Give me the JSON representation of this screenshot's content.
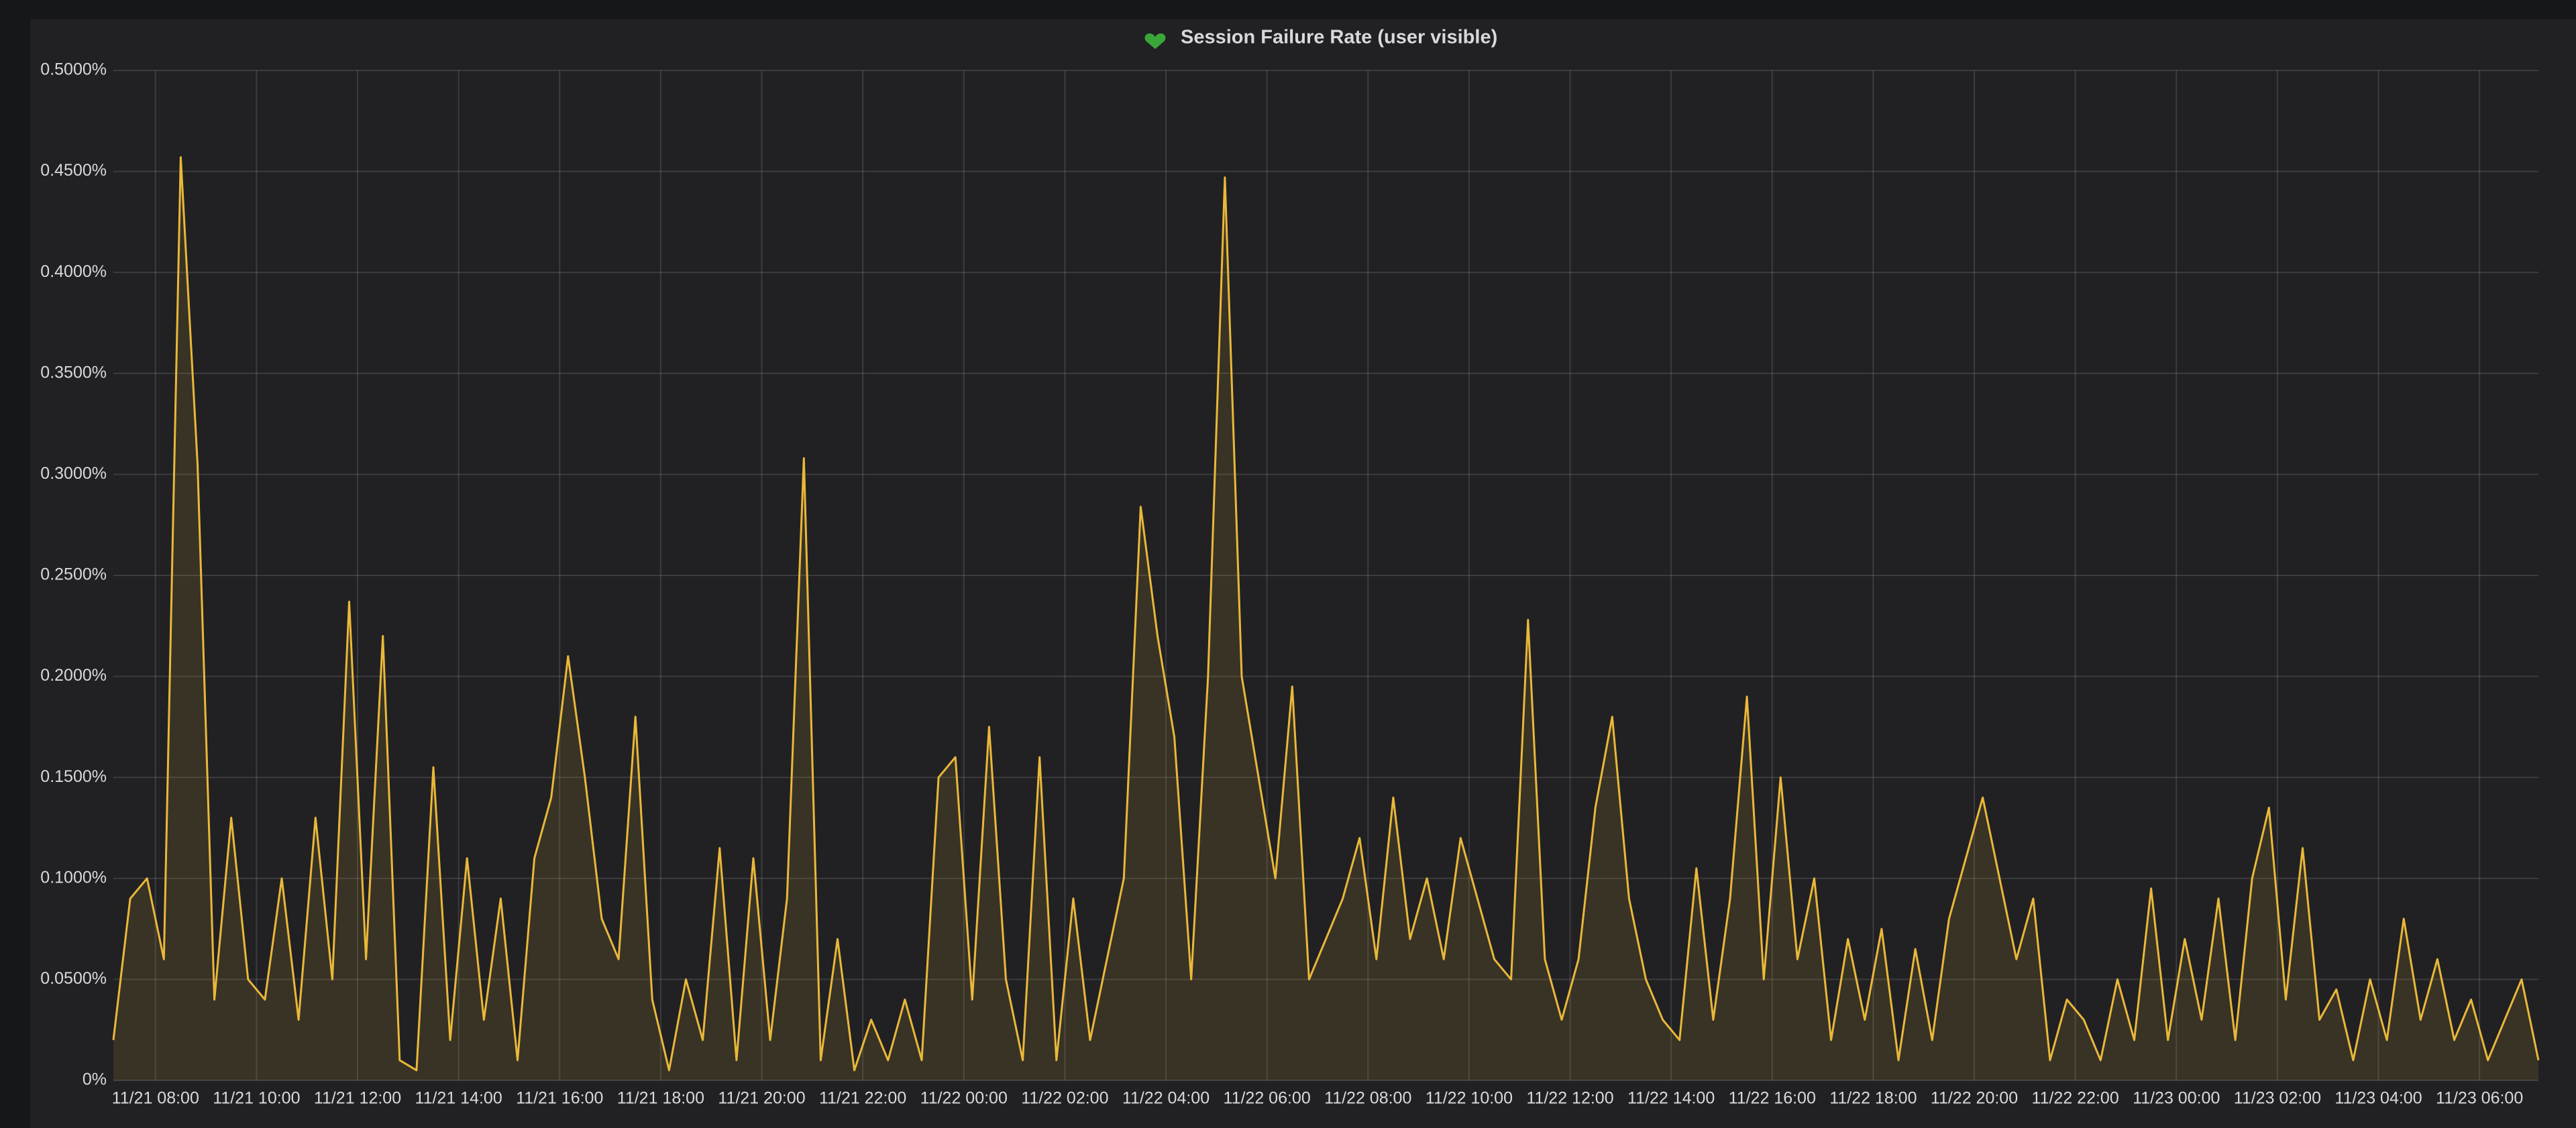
{
  "chart_data": {
    "type": "line",
    "title": "Session Failure Rate (user visible)",
    "x": [
      "11/21 07:10",
      "11/21 07:30",
      "11/21 07:50",
      "11/21 08:10",
      "11/21 08:30",
      "11/21 08:50",
      "11/21 09:10",
      "11/21 09:30",
      "11/21 09:50",
      "11/21 10:10",
      "11/21 10:30",
      "11/21 10:50",
      "11/21 11:10",
      "11/21 11:30",
      "11/21 11:50",
      "11/21 12:10",
      "11/21 12:30",
      "11/21 12:50",
      "11/21 13:10",
      "11/21 13:30",
      "11/21 13:50",
      "11/21 14:10",
      "11/21 14:30",
      "11/21 14:50",
      "11/21 15:10",
      "11/21 15:30",
      "11/21 15:50",
      "11/21 16:10",
      "11/21 16:30",
      "11/21 16:50",
      "11/21 17:10",
      "11/21 17:30",
      "11/21 17:50",
      "11/21 18:10",
      "11/21 18:30",
      "11/21 18:50",
      "11/21 19:10",
      "11/21 19:30",
      "11/21 19:50",
      "11/21 20:10",
      "11/21 20:30",
      "11/21 20:50",
      "11/21 21:10",
      "11/21 21:30",
      "11/21 21:50",
      "11/21 22:10",
      "11/21 22:30",
      "11/21 22:50",
      "11/21 23:10",
      "11/21 23:30",
      "11/21 23:50",
      "11/22 00:10",
      "11/22 00:30",
      "11/22 00:50",
      "11/22 01:10",
      "11/22 01:30",
      "11/22 01:50",
      "11/22 02:10",
      "11/22 02:30",
      "11/22 02:50",
      "11/22 03:10",
      "11/22 03:30",
      "11/22 03:50",
      "11/22 04:10",
      "11/22 04:30",
      "11/22 04:50",
      "11/22 05:10",
      "11/22 05:30",
      "11/22 05:50",
      "11/22 06:10",
      "11/22 06:30",
      "11/22 06:50",
      "11/22 07:10",
      "11/22 07:30",
      "11/22 07:50",
      "11/22 08:10",
      "11/22 08:30",
      "11/22 08:50",
      "11/22 09:10",
      "11/22 09:30",
      "11/22 09:50",
      "11/22 10:10",
      "11/22 10:30",
      "11/22 10:50",
      "11/22 11:10",
      "11/22 11:30",
      "11/22 11:50",
      "11/22 12:10",
      "11/22 12:30",
      "11/22 12:50",
      "11/22 13:10",
      "11/22 13:30",
      "11/22 13:50",
      "11/22 14:10",
      "11/22 14:30",
      "11/22 14:50",
      "11/22 15:10",
      "11/22 15:30",
      "11/22 15:50",
      "11/22 16:10",
      "11/22 16:30",
      "11/22 16:50",
      "11/22 17:10",
      "11/22 17:30",
      "11/22 17:50",
      "11/22 18:10",
      "11/22 18:30",
      "11/22 18:50",
      "11/22 19:10",
      "11/22 19:30",
      "11/22 19:50",
      "11/22 20:10",
      "11/22 20:30",
      "11/22 20:50",
      "11/22 21:10",
      "11/22 21:30",
      "11/22 21:50",
      "11/22 22:10",
      "11/22 22:30",
      "11/22 22:50",
      "11/22 23:10",
      "11/22 23:30",
      "11/22 23:50",
      "11/23 00:10",
      "11/23 00:30",
      "11/23 00:50",
      "11/23 01:10",
      "11/23 01:30",
      "11/23 01:50",
      "11/23 02:10",
      "11/23 02:30",
      "11/23 02:50",
      "11/23 03:10",
      "11/23 03:30",
      "11/23 03:50",
      "11/23 04:10",
      "11/23 04:30",
      "11/23 04:50",
      "11/23 05:10",
      "11/23 05:30",
      "11/23 05:50",
      "11/23 06:10",
      "11/23 06:30",
      "11/23 06:50",
      "11/23 07:10"
    ],
    "values": [
      0.02,
      0.09,
      0.1,
      0.06,
      0.457,
      0.305,
      0.04,
      0.13,
      0.05,
      0.04,
      0.1,
      0.03,
      0.13,
      0.05,
      0.237,
      0.06,
      0.22,
      0.01,
      0.005,
      0.155,
      0.02,
      0.11,
      0.03,
      0.09,
      0.01,
      0.11,
      0.14,
      0.21,
      0.15,
      0.08,
      0.06,
      0.18,
      0.04,
      0.005,
      0.05,
      0.02,
      0.115,
      0.01,
      0.11,
      0.02,
      0.09,
      0.308,
      0.01,
      0.07,
      0.005,
      0.03,
      0.01,
      0.04,
      0.01,
      0.15,
      0.16,
      0.04,
      0.175,
      0.05,
      0.01,
      0.16,
      0.01,
      0.09,
      0.02,
      0.06,
      0.1,
      0.284,
      0.22,
      0.17,
      0.05,
      0.2,
      0.447,
      0.2,
      0.15,
      0.1,
      0.195,
      0.05,
      0.07,
      0.09,
      0.12,
      0.06,
      0.14,
      0.07,
      0.1,
      0.06,
      0.12,
      0.09,
      0.06,
      0.05,
      0.228,
      0.06,
      0.03,
      0.06,
      0.135,
      0.18,
      0.09,
      0.05,
      0.03,
      0.02,
      0.105,
      0.03,
      0.09,
      0.19,
      0.05,
      0.15,
      0.06,
      0.1,
      0.02,
      0.07,
      0.03,
      0.075,
      0.01,
      0.065,
      0.02,
      0.08,
      0.11,
      0.14,
      0.1,
      0.06,
      0.09,
      0.01,
      0.04,
      0.03,
      0.01,
      0.05,
      0.02,
      0.095,
      0.02,
      0.07,
      0.03,
      0.09,
      0.02,
      0.1,
      0.135,
      0.04,
      0.115,
      0.03,
      0.045,
      0.01,
      0.05,
      0.02,
      0.08,
      0.03,
      0.06,
      0.02,
      0.04,
      0.01,
      0.03,
      0.05,
      0.01
    ],
    "color": "#eab839",
    "xlim": [
      "11/21 07:10",
      "11/23 07:10"
    ],
    "xticks": [
      "11/21 08:00",
      "11/21 10:00",
      "11/21 12:00",
      "11/21 14:00",
      "11/21 16:00",
      "11/21 18:00",
      "11/21 20:00",
      "11/21 22:00",
      "11/22 00:00",
      "11/22 02:00",
      "11/22 04:00",
      "11/22 06:00",
      "11/22 08:00",
      "11/22 10:00",
      "11/22 12:00",
      "11/22 14:00",
      "11/22 16:00",
      "11/22 18:00",
      "11/22 20:00",
      "11/22 22:00",
      "11/23 00:00",
      "11/23 02:00",
      "11/23 04:00",
      "11/23 06:00"
    ],
    "ylim": [
      0,
      0.5
    ],
    "yticks": [
      {
        "value": 0,
        "label": "0%"
      },
      {
        "value": 0.05,
        "label": "0.0500%"
      },
      {
        "value": 0.1,
        "label": "0.1000%"
      },
      {
        "value": 0.15,
        "label": "0.1500%"
      },
      {
        "value": 0.2,
        "label": "0.2000%"
      },
      {
        "value": 0.25,
        "label": "0.2500%"
      },
      {
        "value": 0.3,
        "label": "0.3000%"
      },
      {
        "value": 0.35,
        "label": "0.3500%"
      },
      {
        "value": 0.4,
        "label": "0.4000%"
      },
      {
        "value": 0.45,
        "label": "0.4500%"
      },
      {
        "value": 0.5,
        "label": "0.5000%"
      }
    ],
    "grid": true
  }
}
